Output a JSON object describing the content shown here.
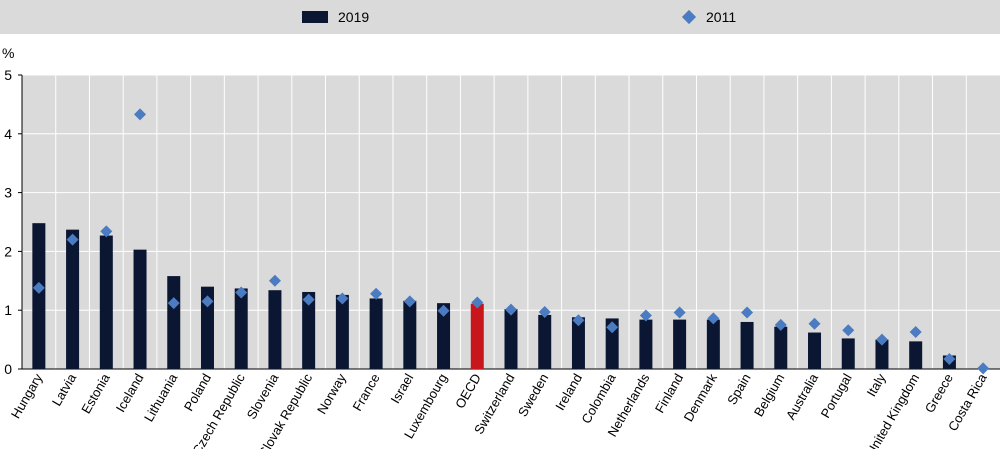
{
  "chart_data": {
    "type": "bar",
    "unit_label": "%",
    "categories": [
      "Hungary",
      "Latvia",
      "Estonia",
      "Iceland",
      "Lithuania",
      "Poland",
      "Czech Republic",
      "Slovenia",
      "Slovak Republic",
      "Norway",
      "France",
      "Israel",
      "Luxembourg",
      "OECD",
      "Switzerland",
      "Sweden",
      "Ireland",
      "Colombia",
      "Netherlands",
      "Finland",
      "Denmark",
      "Spain",
      "Belgium",
      "Australia",
      "Portugal",
      "Italy",
      "United Kingdom",
      "Greece",
      "Costa Rica"
    ],
    "series": [
      {
        "name": "2019",
        "mark": "bar",
        "values": [
          2.48,
          2.37,
          2.27,
          2.03,
          1.58,
          1.4,
          1.37,
          1.34,
          1.31,
          1.26,
          1.2,
          1.16,
          1.12,
          1.11,
          1.02,
          0.92,
          0.88,
          0.86,
          0.84,
          0.84,
          0.84,
          0.8,
          0.72,
          0.62,
          0.52,
          0.5,
          0.47,
          0.23,
          0.0
        ]
      },
      {
        "name": "2011",
        "mark": "diamond",
        "values": [
          1.38,
          2.2,
          2.34,
          4.33,
          1.12,
          1.15,
          1.3,
          1.5,
          1.18,
          1.2,
          1.28,
          1.15,
          0.99,
          1.13,
          1.01,
          0.97,
          0.83,
          0.71,
          0.91,
          0.96,
          0.86,
          0.96,
          0.75,
          0.77,
          0.66,
          0.5,
          0.63,
          0.17,
          0.01
        ]
      }
    ],
    "highlight_category": "OECD",
    "ylim": [
      0,
      5
    ],
    "yticks": [
      0,
      1,
      2,
      3,
      4,
      5
    ],
    "grid": true,
    "legend_position": "top"
  },
  "colors": {
    "bar": "#0b1633",
    "bar_highlight": "#c8161d",
    "diamond": "#4b7bc0",
    "plot_background": "#dadada",
    "gridline": "#ffffff"
  },
  "legend": {
    "item_2019": "2019",
    "item_2011": "2011"
  }
}
